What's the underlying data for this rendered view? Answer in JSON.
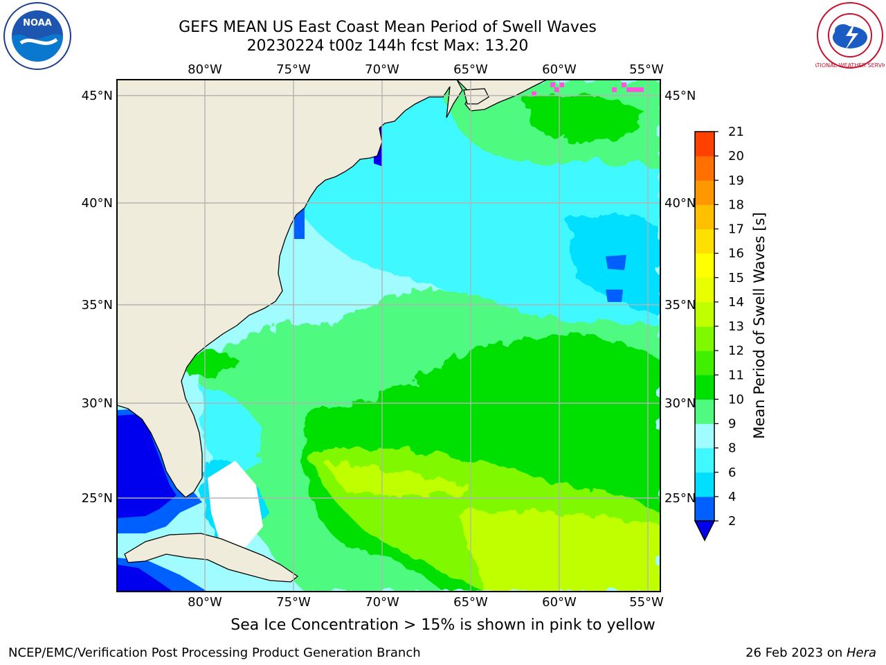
{
  "title": {
    "line1": "GEFS MEAN US East Coast Mean Period of Swell Waves",
    "line2": "20230224 t00z 144h fcst   Max: 13.20"
  },
  "map": {
    "lon_labels": [
      "80°W",
      "75°W",
      "70°W",
      "65°W",
      "60°W",
      "55°W"
    ],
    "lat_labels": [
      "45°N",
      "40°N",
      "35°N",
      "30°N",
      "25°N"
    ],
    "land_color": "#efecdb",
    "grid_color": "#b3b3b3"
  },
  "colorbar": {
    "title": "Mean Period of Swell Waves [s]",
    "ticks": [
      "2",
      "4",
      "6",
      "8",
      "9",
      "10",
      "11",
      "12",
      "13",
      "14",
      "15",
      "16",
      "17",
      "18",
      "19",
      "20",
      "21"
    ],
    "colors": [
      "#0060ff",
      "#00dfff",
      "#40f8ff",
      "#a0fcff",
      "#50fa80",
      "#00e000",
      "#40f000",
      "#80f800",
      "#c0ff00",
      "#e8ff00",
      "#ffff00",
      "#ffe000",
      "#ffc000",
      "#ff9800",
      "#ff7000",
      "#ff4000",
      "#ff0000"
    ],
    "under_color": "#0000ee"
  },
  "footnote": "Sea Ice Concentration > 15% is shown in pink to yellow",
  "credit": "NCEP/EMC/Verification Post Processing Product Generation Branch",
  "date": {
    "text": "26 Feb 2023 on ",
    "machine": "Hera"
  },
  "logos": {
    "left": "NOAA",
    "right": "NATIONAL WEATHER SERVICE"
  }
}
